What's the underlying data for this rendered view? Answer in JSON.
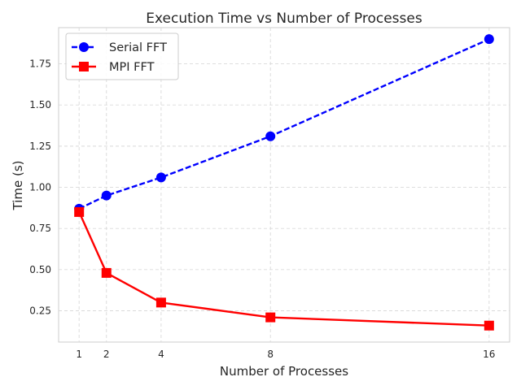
{
  "chart_data": {
    "type": "line",
    "title": "Execution Time vs Number of Processes",
    "xlabel": "Number of Processes",
    "ylabel": "Time (s)",
    "x": [
      1,
      2,
      4,
      8,
      16
    ],
    "x_ticks": [
      "1",
      "2",
      "4",
      "8",
      "16"
    ],
    "y_ticks": [
      "0.25",
      "0.50",
      "0.75",
      "1.00",
      "1.25",
      "1.50",
      "1.75"
    ],
    "xlim": [
      0.25,
      16.75
    ],
    "ylim": [
      0.06,
      1.97
    ],
    "grid": true,
    "legend_position": "upper-left",
    "series": [
      {
        "name": "Serial FFT",
        "values": [
          0.87,
          0.95,
          1.06,
          1.31,
          1.9
        ],
        "color": "#0000ff",
        "linestyle": "dashed",
        "marker": "circle"
      },
      {
        "name": "MPI FFT",
        "values": [
          0.85,
          0.48,
          0.3,
          0.21,
          0.16
        ],
        "color": "#ff0000",
        "linestyle": "solid",
        "marker": "square"
      }
    ]
  }
}
